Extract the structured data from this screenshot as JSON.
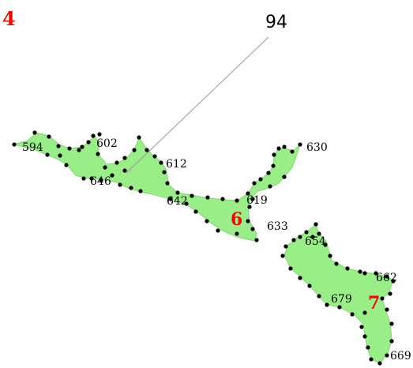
{
  "colors": {
    "land": "#99ee88",
    "land_stroke": "#7fd86f",
    "dot": "#000000",
    "region_label": "#ff0000",
    "leader_line": "#999999"
  },
  "map": {
    "corner_label": "4",
    "callout_label": "94",
    "region_labels": [
      "6",
      "7"
    ],
    "point_labels": [
      "594",
      "602",
      "646",
      "612",
      "642",
      "619",
      "630",
      "633",
      "654",
      "662",
      "679",
      "669"
    ]
  }
}
